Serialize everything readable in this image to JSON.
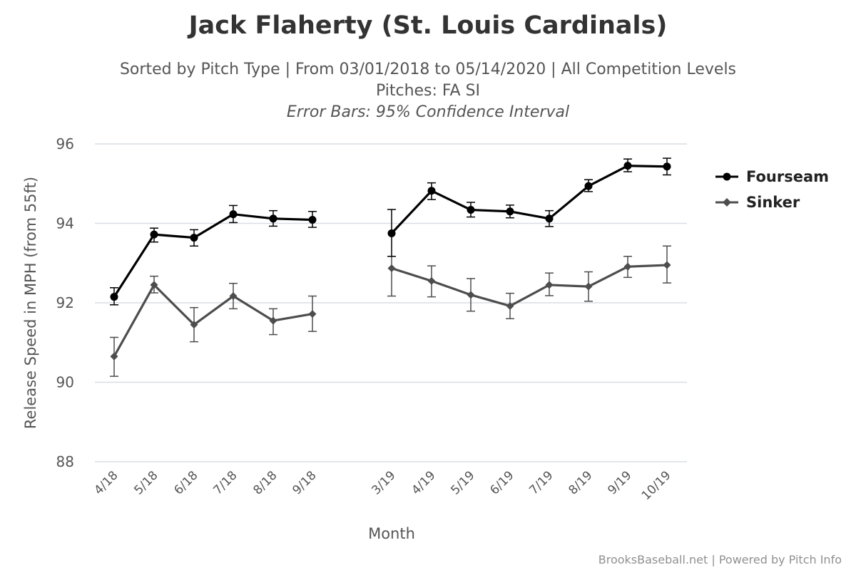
{
  "title": "Jack Flaherty (St. Louis Cardinals)",
  "subtitles": [
    "Sorted by Pitch Type | From 03/01/2018 to 05/14/2020 | All Competition Levels",
    "Pitches: FA SI",
    "Error Bars: 95% Confidence Interval"
  ],
  "credits": "BrooksBaseball.net | Powered by Pitch Info",
  "colors": {
    "fourseam": "#000000",
    "sinker": "#4d4d4d",
    "grid": "#d8dde3"
  },
  "chart_data": {
    "type": "line",
    "xlabel": "Month",
    "ylabel": "Release Speed in MPH (from 55ft)",
    "ylim": [
      88,
      96
    ],
    "yticks": [
      88,
      90,
      92,
      94,
      96
    ],
    "grid": true,
    "legend_position": "right",
    "categories": [
      "4/18",
      "5/18",
      "6/18",
      "7/18",
      "8/18",
      "9/18",
      "3/19",
      "4/19",
      "5/19",
      "6/19",
      "7/19",
      "8/19",
      "9/19",
      "10/19"
    ],
    "series": [
      {
        "name": "Fourseam",
        "marker": "circle",
        "values": [
          92.15,
          93.72,
          93.64,
          94.23,
          94.12,
          94.09,
          93.75,
          94.82,
          94.34,
          94.3,
          94.12,
          94.94,
          95.45,
          95.43
        ],
        "error_low": [
          91.95,
          93.53,
          93.43,
          94.02,
          93.93,
          93.9,
          93.17,
          94.6,
          94.16,
          94.14,
          93.92,
          94.8,
          95.3,
          95.22
        ],
        "error_high": [
          92.38,
          93.88,
          93.84,
          94.45,
          94.32,
          94.3,
          94.35,
          95.02,
          94.53,
          94.46,
          94.32,
          95.1,
          95.62,
          95.64
        ]
      },
      {
        "name": "Sinker",
        "marker": "diamond",
        "values": [
          90.65,
          92.45,
          91.45,
          92.17,
          91.55,
          91.72,
          92.87,
          92.55,
          92.2,
          91.92,
          92.45,
          92.41,
          92.91,
          92.95
        ],
        "error_low": [
          90.15,
          92.25,
          91.02,
          91.85,
          91.2,
          91.28,
          92.17,
          92.15,
          91.79,
          91.6,
          92.18,
          92.04,
          92.64,
          92.5
        ],
        "error_high": [
          91.13,
          92.67,
          91.88,
          92.49,
          91.85,
          92.17,
          93.17,
          92.93,
          92.61,
          92.24,
          92.75,
          92.78,
          93.17,
          93.43
        ]
      }
    ]
  }
}
